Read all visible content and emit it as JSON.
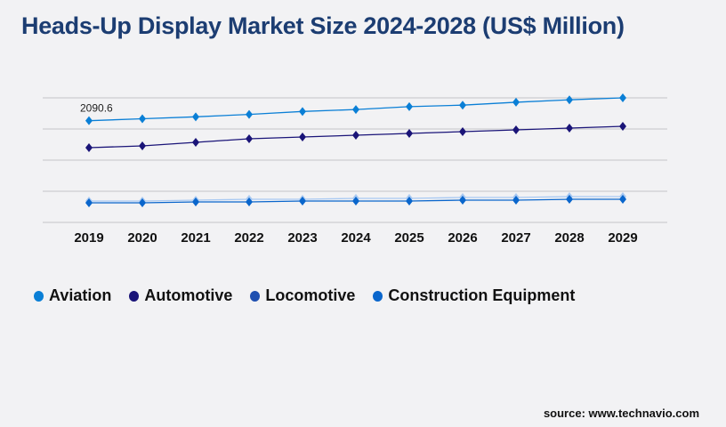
{
  "title": "Heads-Up Display Market Size 2024-2028 (US$ Million)",
  "source": "source: www.technavio.com",
  "chart_data": {
    "type": "line",
    "title": "Heads-Up Display Market Size 2024-2028 (US$ Million)",
    "x": [
      "2019",
      "2020",
      "2021",
      "2022",
      "2023",
      "2024",
      "2025",
      "2026",
      "2027",
      "2028",
      "2029"
    ],
    "ylim": [
      0,
      3200
    ],
    "grid": true,
    "legend": "bottom",
    "annotations": [
      {
        "series": "Aviation",
        "x": "2019",
        "text": "2090.6"
      }
    ],
    "series": [
      {
        "name": "Aviation",
        "color": "#0a7fd6",
        "line": "#0a7fd6",
        "values": [
          2090.6,
          2130,
          2170,
          2220,
          2280,
          2320,
          2380,
          2410,
          2470,
          2520,
          2560
        ]
      },
      {
        "name": "Automotive",
        "color": "#1a1478",
        "line": "#1a1478",
        "values": [
          1536,
          1573,
          1646,
          1719,
          1756,
          1792,
          1829,
          1865,
          1902,
          1938,
          1975
        ]
      },
      {
        "name": "Locomotive",
        "color": "#1e4fb0",
        "line": "#a9c9f2",
        "values": [
          439,
          439,
          457,
          475,
          475,
          494,
          494,
          512,
          512,
          530,
          530
        ]
      },
      {
        "name": "Construction Equipment",
        "color": "#0a66cc",
        "line": "#0a66cc",
        "values": [
          402,
          402,
          421,
          421,
          439,
          439,
          439,
          457,
          457,
          475,
          475
        ]
      }
    ]
  }
}
